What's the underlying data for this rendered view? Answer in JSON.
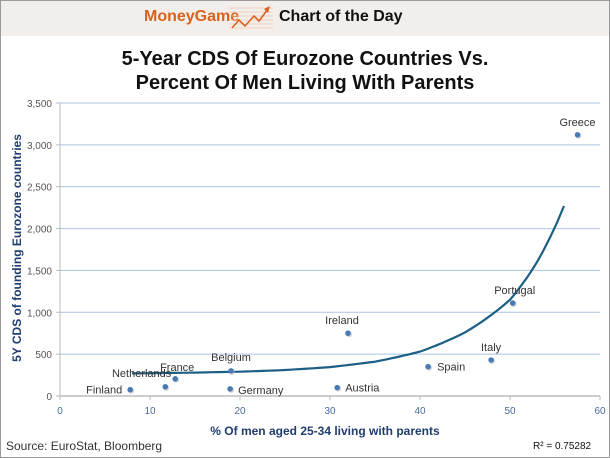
{
  "banner": {
    "brand": "MoneyGame",
    "icon": "rising-chart-arrow-icon",
    "label": "Chart of the Day",
    "brand_color": "#d9621c"
  },
  "footer": {
    "source": "Source: EuroStat, Bloomberg",
    "r_squared": "R² = 0.75282"
  },
  "chart_data": {
    "type": "scatter",
    "title": "5-Year CDS Of Eurozone Countries Vs. Percent Of Men Living With Parents",
    "title_lines": [
      "5-Year CDS Of Eurozone Countries Vs.",
      "Percent Of Men Living With Parents"
    ],
    "xlabel": "% Of men aged 25-34 living with parents",
    "ylabel": "5Y CDS of founding Eurozone countries",
    "xlim": [
      0,
      60
    ],
    "ylim": [
      0,
      3500
    ],
    "xticks": [
      0,
      10,
      20,
      30,
      40,
      50,
      60
    ],
    "yticks": [
      0,
      500,
      1000,
      1500,
      2000,
      2500,
      3000,
      3500
    ],
    "ytick_labels": [
      "0",
      "500",
      "1,000",
      "1,500",
      "2,000",
      "2,500",
      "3,000",
      "3,500"
    ],
    "grid": "horizontal",
    "point_color": "#4a7ab5",
    "trend_color": "#1b5f84",
    "grid_color": "#a9c4e4",
    "points": [
      {
        "label": "Finland",
        "x": 7.8,
        "y": 75
      },
      {
        "label": "Netherlands",
        "x": 11.7,
        "y": 110
      },
      {
        "label": "France",
        "x": 12.8,
        "y": 205
      },
      {
        "label": "Belgium",
        "x": 19.0,
        "y": 300
      },
      {
        "label": "Germany",
        "x": 18.9,
        "y": 85
      },
      {
        "label": "Austria",
        "x": 30.8,
        "y": 100
      },
      {
        "label": "Ireland",
        "x": 32.0,
        "y": 750
      },
      {
        "label": "Spain",
        "x": 40.9,
        "y": 350
      },
      {
        "label": "Italy",
        "x": 47.9,
        "y": 430
      },
      {
        "label": "Portugal",
        "x": 50.3,
        "y": 1110
      },
      {
        "label": "Greece",
        "x": 57.5,
        "y": 3120
      }
    ],
    "trendline": {
      "type": "exponential",
      "x_range": [
        8,
        56
      ],
      "points": [
        [
          8,
          270
        ],
        [
          15,
          280
        ],
        [
          20,
          290
        ],
        [
          25,
          310
        ],
        [
          30,
          345
        ],
        [
          35,
          410
        ],
        [
          40,
          530
        ],
        [
          45,
          760
        ],
        [
          50,
          1150
        ],
        [
          53,
          1600
        ],
        [
          56,
          2270
        ]
      ],
      "r_squared": 0.75282
    }
  }
}
